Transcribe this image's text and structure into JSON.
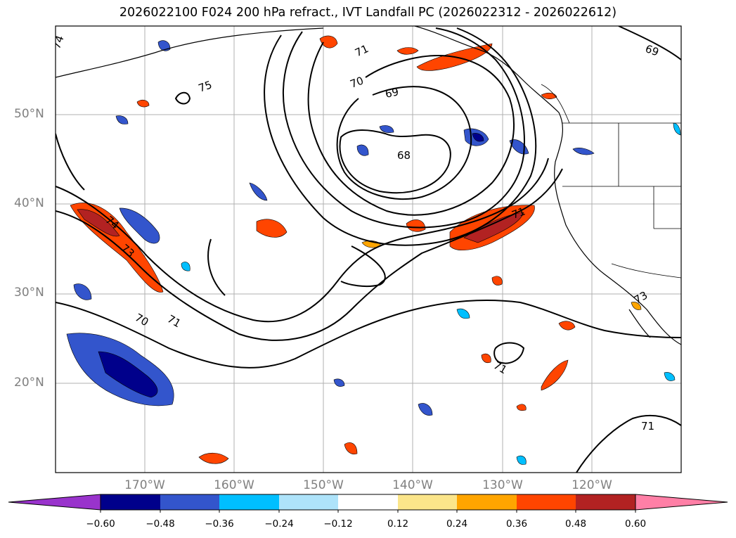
{
  "title": "2026022100 F024 200 hPa refract., IVT Landfall PC (2026022312 - 2026022612)",
  "map": {
    "lat_labels": [
      "50°N",
      "40°N",
      "30°N",
      "20°N"
    ],
    "lon_labels": [
      "170°W",
      "160°W",
      "150°W",
      "140°W",
      "130°W",
      "120°W"
    ]
  },
  "contour_labels": [
    "74",
    "75",
    "71",
    "70",
    "69",
    "68",
    "69",
    "71",
    "74",
    "73",
    "70",
    "71",
    "71",
    "73",
    "71"
  ],
  "colorbar": {
    "tick_labels": [
      "−0.60",
      "−0.48",
      "−0.36",
      "−0.24",
      "−0.12",
      "0.12",
      "0.24",
      "0.36",
      "0.48",
      "0.60"
    ],
    "colors": [
      "#9933cc",
      "#00008b",
      "#3355cc",
      "#00bfff",
      "#aee3fa",
      "#ffffff",
      "#fbe58a",
      "#ffa500",
      "#ff4500",
      "#b22222",
      "#ff7fa6"
    ]
  }
}
